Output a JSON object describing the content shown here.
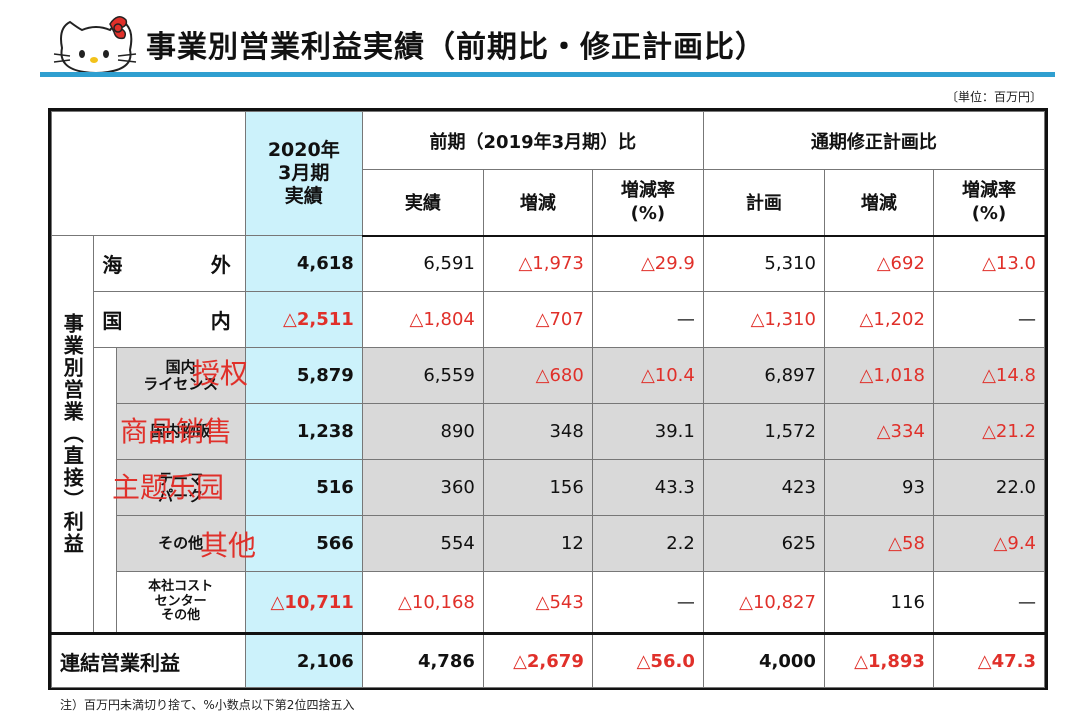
{
  "header": {
    "title": "事業別営業利益実績（前期比・修正計画比）",
    "unit": "〔単位：百万円〕",
    "logo_icon": "hello-kitty-icon"
  },
  "table": {
    "head": {
      "current": "2020年\n3月期\n実績",
      "prev_group": "前期（2019年3月期）比",
      "plan_group": "通期修正計画比",
      "actual": "実績",
      "change": "増減",
      "rate": "増減率\n(%)",
      "plan": "計画"
    },
    "side_label": "事業別営業（直接）利益",
    "rows": [
      {
        "label": "海外",
        "current": "4,618",
        "p_actual": "6,591",
        "p_change": "△1,973",
        "p_rate": "△29.9",
        "plan": "5,310",
        "pl_change": "△692",
        "pl_rate": "△13.0"
      },
      {
        "label": "国内",
        "current": "△2,511",
        "p_actual": "△1,804",
        "p_change": "△707",
        "p_rate": "—",
        "plan": "△1,310",
        "pl_change": "△1,202",
        "pl_rate": "—"
      },
      {
        "label": "国内\nライセンス",
        "current": "5,879",
        "p_actual": "6,559",
        "p_change": "△680",
        "p_rate": "△10.4",
        "plan": "6,897",
        "pl_change": "△1,018",
        "pl_rate": "△14.8"
      },
      {
        "label": "国内物販",
        "current": "1,238",
        "p_actual": "890",
        "p_change": "348",
        "p_rate": "39.1",
        "plan": "1,572",
        "pl_change": "△334",
        "pl_rate": "△21.2"
      },
      {
        "label": "テーマ\nパーク",
        "current": "516",
        "p_actual": "360",
        "p_change": "156",
        "p_rate": "43.3",
        "plan": "423",
        "pl_change": "93",
        "pl_rate": "22.0"
      },
      {
        "label": "その他",
        "current": "566",
        "p_actual": "554",
        "p_change": "12",
        "p_rate": "2.2",
        "plan": "625",
        "pl_change": "△58",
        "pl_rate": "△9.4"
      },
      {
        "label": "本社コスト\nセンター\nその他",
        "current": "△10,711",
        "p_actual": "△10,168",
        "p_change": "△543",
        "p_rate": "—",
        "plan": "△10,827",
        "pl_change": "116",
        "pl_rate": "—"
      }
    ],
    "total": {
      "label": "連結営業利益",
      "current": "2,106",
      "p_actual": "4,786",
      "p_change": "△2,679",
      "p_rate": "△56.0",
      "plan": "4,000",
      "pl_change": "△1,893",
      "pl_rate": "△47.3"
    }
  },
  "overlays": {
    "license": "授权",
    "goods": "商品销售",
    "park": "主题乐园",
    "other": "其他"
  },
  "note": "注）百万円未満切り捨て、%小数点以下第2位四捨五入",
  "colors": {
    "accent_rule": "#2f9fd0",
    "negative": "#e0302a",
    "highlight": "#ccf2fb",
    "gray_row": "#d9d9d9"
  }
}
